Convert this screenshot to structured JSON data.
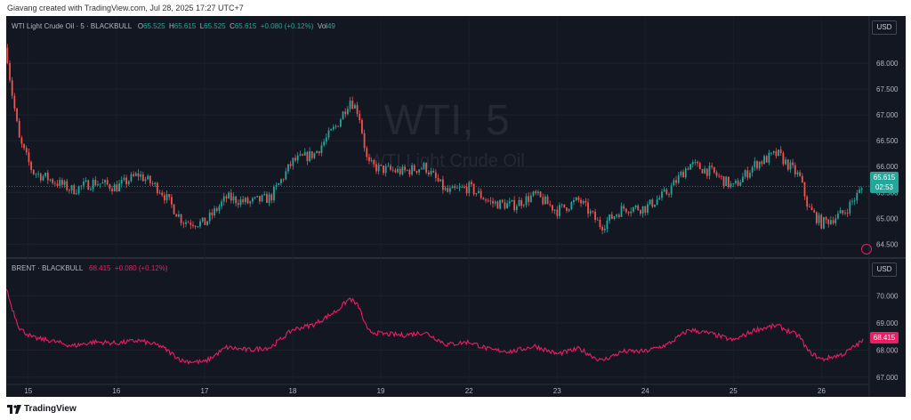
{
  "header": {
    "attribution": "Giavang created with TradingView.com, Jul 28, 2025 17:27 UTC+7"
  },
  "footer": {
    "brand": "TradingView"
  },
  "colors": {
    "up": "#26a69a",
    "down": "#ef5350",
    "brent_line": "#e91e63",
    "background": "#131722"
  },
  "wti": {
    "legend": {
      "title": "WTI Light Crude Oil · 5 · BLACKBULL",
      "o_label": "O",
      "o_value": "65.525",
      "h_label": "H",
      "h_value": "65.615",
      "l_label": "L",
      "l_value": "65.525",
      "c_label": "C",
      "c_value": "65.615",
      "change": "+0.080 (+0.12%)",
      "vol_label": "Vol",
      "vol_value": "49"
    },
    "currency": "USD",
    "watermark_symbol": "WTI, 5",
    "watermark_description": "WTI Light Crude Oil",
    "last_price": "65.615",
    "countdown": "02:53"
  },
  "brent": {
    "legend": {
      "title": "BRENT · BLACKBULL",
      "value": "68.415",
      "change": "+0.080 (+0.12%)"
    },
    "currency": "USD",
    "last_price": "68.415"
  },
  "chart_data": [
    {
      "type": "candlestick",
      "title": "WTI Light Crude Oil · 5 · BLACKBULL",
      "ylim": [
        64.3,
        68.5
      ],
      "y_ticks": [
        "68.000",
        "67.500",
        "67.000",
        "66.500",
        "66.000",
        "65.500",
        "65.000",
        "64.500"
      ],
      "y_tick_values": [
        68.0,
        67.5,
        67.0,
        66.5,
        66.0,
        65.5,
        65.0,
        64.5
      ],
      "x_ticks": [
        "15",
        "16",
        "17",
        "18",
        "19",
        "22",
        "23",
        "24",
        "25",
        "26"
      ],
      "x_tick_values": [
        0.5,
        1.5,
        2.5,
        3.5,
        4.5,
        5.5,
        6.5,
        7.5,
        8.5,
        9.5
      ],
      "xlim": [
        0.25,
        10.0
      ],
      "close_path_x": [
        0.25,
        0.3,
        0.4,
        0.55,
        0.75,
        1.0,
        1.25,
        1.5,
        1.75,
        2.0,
        2.25,
        2.5,
        2.75,
        3.0,
        3.25,
        3.5,
        3.75,
        4.0,
        4.15,
        4.25,
        4.35,
        4.5,
        4.75,
        5.0,
        5.25,
        5.5,
        5.75,
        6.0,
        6.25,
        6.5,
        6.75,
        7.0,
        7.25,
        7.5,
        7.75,
        8.0,
        8.25,
        8.5,
        8.75,
        9.0,
        9.25,
        9.35,
        9.5,
        9.75,
        9.97
      ],
      "close_path_y": [
        68.3,
        67.6,
        66.5,
        65.9,
        65.75,
        65.55,
        65.7,
        65.6,
        65.85,
        65.55,
        64.95,
        64.9,
        65.4,
        65.3,
        65.4,
        66.1,
        66.25,
        66.8,
        67.3,
        67.05,
        66.05,
        65.95,
        65.9,
        66.0,
        65.5,
        65.6,
        65.3,
        65.25,
        65.45,
        65.15,
        65.35,
        64.85,
        65.2,
        65.2,
        65.5,
        66.05,
        65.9,
        65.6,
        66.05,
        66.25,
        65.8,
        65.2,
        64.9,
        65.1,
        65.6
      ]
    },
    {
      "type": "line",
      "title": "BRENT · BLACKBULL",
      "ylim": [
        66.8,
        70.6
      ],
      "y_ticks": [
        "70.000",
        "69.000",
        "68.000",
        "67.000"
      ],
      "y_tick_values": [
        70.0,
        69.0,
        68.0,
        67.0
      ],
      "x_ticks": [
        "15",
        "16",
        "17",
        "18",
        "19",
        "22",
        "23",
        "24",
        "25",
        "26"
      ],
      "x_tick_values": [
        0.5,
        1.5,
        2.5,
        3.5,
        4.5,
        5.5,
        6.5,
        7.5,
        8.5,
        9.5
      ],
      "xlim": [
        0.25,
        10.0
      ],
      "x": [
        0.25,
        0.3,
        0.4,
        0.55,
        0.75,
        1.0,
        1.25,
        1.5,
        1.75,
        2.0,
        2.25,
        2.5,
        2.75,
        3.0,
        3.25,
        3.5,
        3.75,
        4.0,
        4.15,
        4.25,
        4.35,
        4.5,
        4.75,
        5.0,
        5.25,
        5.5,
        5.75,
        6.0,
        6.25,
        6.5,
        6.75,
        7.0,
        7.25,
        7.5,
        7.75,
        8.0,
        8.25,
        8.5,
        8.75,
        9.0,
        9.25,
        9.35,
        9.5,
        9.75,
        9.97
      ],
      "y": [
        70.3,
        69.7,
        68.8,
        68.45,
        68.35,
        68.15,
        68.3,
        68.25,
        68.35,
        68.15,
        67.6,
        67.55,
        68.1,
        68.0,
        68.1,
        68.75,
        68.95,
        69.45,
        69.9,
        69.6,
        68.7,
        68.6,
        68.55,
        68.65,
        68.2,
        68.3,
        68.0,
        67.95,
        68.15,
        67.85,
        68.05,
        67.6,
        67.95,
        67.95,
        68.2,
        68.75,
        68.6,
        68.35,
        68.75,
        68.9,
        68.5,
        67.95,
        67.65,
        67.85,
        68.35
      ]
    }
  ]
}
